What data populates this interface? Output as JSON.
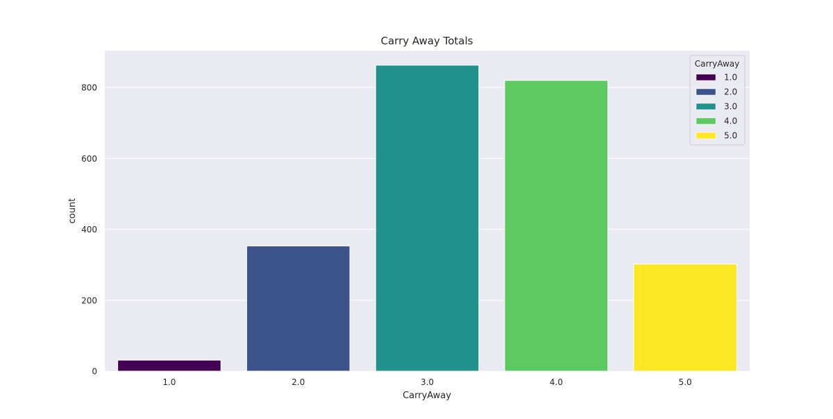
{
  "chart_data": {
    "type": "bar",
    "title": "Carry Away Totals",
    "xlabel": "CarryAway",
    "ylabel": "count",
    "categories": [
      "1.0",
      "2.0",
      "3.0",
      "4.0",
      "5.0"
    ],
    "values": [
      31,
      353,
      863,
      820,
      302
    ],
    "colors": [
      "#440154",
      "#3b528b",
      "#21918c",
      "#5ec962",
      "#fde725"
    ],
    "ylim": [
      0,
      904
    ],
    "yticks": [
      0,
      200,
      400,
      600,
      800
    ],
    "grid": true,
    "legend": {
      "title": "CarryAway",
      "placement": "top-right",
      "entries": [
        "1.0",
        "2.0",
        "3.0",
        "4.0",
        "5.0"
      ]
    }
  }
}
